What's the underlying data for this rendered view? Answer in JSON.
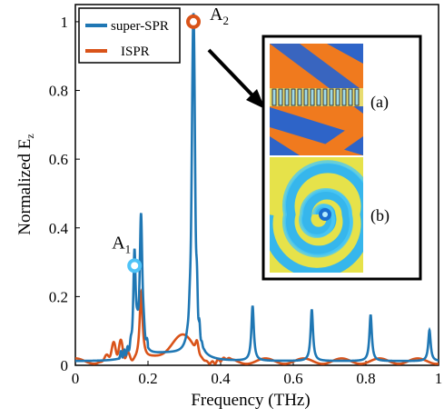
{
  "chart_data": {
    "type": "line",
    "xlabel": "Frequency (THz)",
    "ylabel_main": "Normalized E",
    "ylabel_sub": "z",
    "xlim": [
      0,
      1
    ],
    "ylim": [
      0,
      1.05
    ],
    "xticks": [
      0,
      0.2,
      0.4,
      0.6,
      0.8,
      1
    ],
    "xtick_labels": [
      "0",
      "0.2",
      "0.4",
      "0.6",
      "0.8",
      "1"
    ],
    "yticks": [
      0,
      0.2,
      0.4,
      0.6,
      0.8,
      1
    ],
    "ytick_labels": [
      "0",
      "0.2",
      "0.4",
      "0.6",
      "0.8",
      "1"
    ],
    "legend_position": "top-left",
    "series": [
      {
        "name": "super-SPR",
        "color": "#1f77b4",
        "peaks": [
          {
            "x": 0.163,
            "y": 0.28
          },
          {
            "x": 0.181,
            "y": 0.39
          },
          {
            "x": 0.325,
            "y": 1.0
          },
          {
            "x": 0.488,
            "y": 0.16
          },
          {
            "x": 0.651,
            "y": 0.15
          },
          {
            "x": 0.813,
            "y": 0.135
          },
          {
            "x": 0.975,
            "y": 0.09
          }
        ]
      },
      {
        "name": "ISPR",
        "color": "#d95319",
        "peaks": [
          {
            "x": 0.181,
            "y": 0.2
          },
          {
            "x": 0.29,
            "y": 0.07
          },
          {
            "x": 0.33,
            "y": 0.03
          }
        ]
      }
    ],
    "markers": [
      {
        "label": "A",
        "subscript": "1",
        "x": 0.163,
        "y": 0.29,
        "color": "#4fc3f7"
      },
      {
        "label": "A",
        "subscript": "2",
        "x": 0.325,
        "y": 1.0,
        "color": "#d95319"
      }
    ],
    "inset": {
      "panels": [
        {
          "label": "(a)"
        },
        {
          "label": "(b)"
        }
      ]
    }
  }
}
